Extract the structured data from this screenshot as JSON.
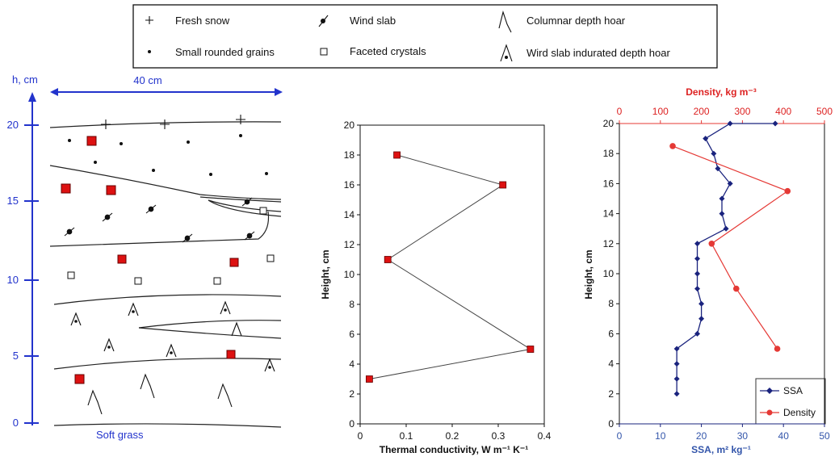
{
  "colors": {
    "axis_blue": "#2233cc",
    "ssa": "#1a237e",
    "density": "#e53935",
    "marker_red": "#dd1111"
  },
  "legend": {
    "fresh_snow": "Fresh snow",
    "small_rounded": "Small rounded grains",
    "wind_slab": "Wind slab",
    "faceted": "Faceted crystals",
    "columnar": "Columnar depth hoar",
    "windslab_dh": "Wird slab indurated depth hoar"
  },
  "profile": {
    "h_label": "h, cm",
    "width_label": "40 cm",
    "ticks": [
      "20",
      "15",
      "10",
      "5",
      "0"
    ],
    "ground_label": "Soft grass"
  },
  "chart_data": [
    {
      "type": "line",
      "x": [
        0.08,
        0.31,
        0.06,
        0.37,
        0.02
      ],
      "y": [
        18,
        16,
        11,
        5,
        3
      ],
      "xlabel": "Thermal conductivity, W m⁻¹ K⁻¹",
      "ylabel": "Height, cm",
      "xlim": [
        0,
        0.4
      ],
      "ylim": [
        0,
        20
      ],
      "xticks": [
        "0",
        "0.1",
        "0.2",
        "0.3",
        "0.4"
      ],
      "yticks": [
        "0",
        "2",
        "4",
        "6",
        "8",
        "10",
        "12",
        "14",
        "16",
        "18",
        "20"
      ],
      "grid": false
    },
    {
      "type": "line",
      "series": [
        {
          "name": "SSA",
          "axis": "bottom",
          "x": [
            38,
            27,
            21,
            23,
            24,
            27,
            25,
            25,
            26,
            19,
            19,
            19,
            19,
            20,
            20,
            19,
            14,
            14,
            14,
            14
          ],
          "y": [
            20,
            20,
            19,
            18,
            17,
            16,
            15,
            14,
            13,
            12,
            11,
            10,
            9,
            8,
            7,
            6,
            5,
            4,
            3,
            2
          ]
        },
        {
          "name": "Density",
          "axis": "top",
          "x": [
            130,
            410,
            225,
            285,
            385
          ],
          "y": [
            18.5,
            15.5,
            12,
            9,
            5
          ]
        }
      ],
      "xlabel": "SSA, m² kg⁻¹",
      "x2label": "Density, kg m⁻³",
      "ylabel": "Height, cm",
      "xlim": [
        0,
        50
      ],
      "x2lim": [
        0,
        500
      ],
      "ylim": [
        0,
        20
      ],
      "xticks": [
        "0",
        "10",
        "20",
        "30",
        "40",
        "50"
      ],
      "x2ticks": [
        "0",
        "100",
        "200",
        "300",
        "400",
        "500"
      ],
      "yticks": [
        "0",
        "2",
        "4",
        "6",
        "8",
        "10",
        "12",
        "14",
        "16",
        "18",
        "20"
      ],
      "legend": "bottom-right",
      "grid": false
    }
  ]
}
